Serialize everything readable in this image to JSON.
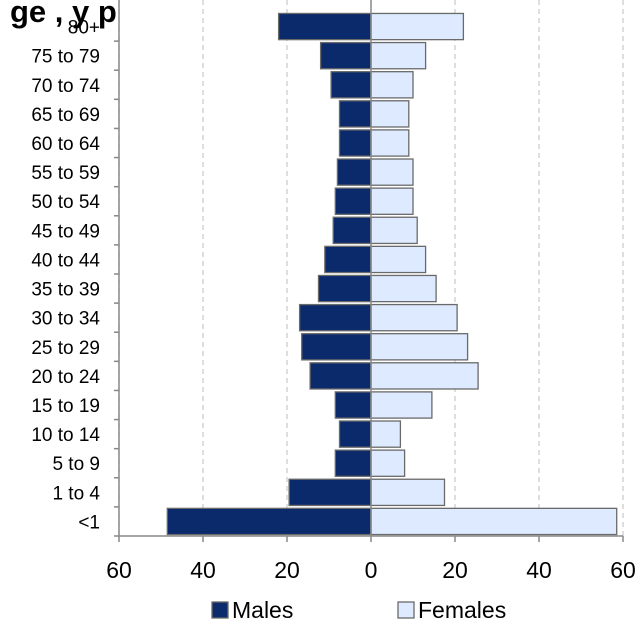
{
  "chart_data": {
    "type": "bar",
    "orientation": "horizontal",
    "title": "ge ,   y       p",
    "categories": [
      "<1",
      "1 to 4",
      "5 to 9",
      "10 to 14",
      "15 to 19",
      "20 to 24",
      "25 to 29",
      "30 to 34",
      "35 to 39",
      "40 to 44",
      "45 to 49",
      "50 to 54",
      "55 to 59",
      "60 to 64",
      "65 to 69",
      "70 to 74",
      "75 to 79",
      "80+"
    ],
    "series": [
      {
        "name": "Males",
        "color": "#0b2a6b",
        "values": [
          48.5,
          19.5,
          8.5,
          7.5,
          8.5,
          14.5,
          16.5,
          17,
          12.5,
          11,
          9,
          8.5,
          8,
          7.5,
          7.5,
          9.5,
          12,
          22
        ]
      },
      {
        "name": "Females",
        "color": "#ddeaff",
        "values": [
          58.5,
          17.5,
          8,
          7,
          14.5,
          25.5,
          23,
          20.5,
          15.5,
          13,
          11,
          10,
          10,
          9,
          9,
          10,
          13,
          22
        ]
      }
    ],
    "xlim": [
      -60,
      60
    ],
    "xticks": [
      -60,
      -40,
      -20,
      0,
      20,
      40,
      60
    ],
    "xtick_labels": [
      "60",
      "40",
      "20",
      "0",
      "20",
      "40",
      "60"
    ],
    "grid": "vertical dashed",
    "legend_position": "bottom"
  }
}
